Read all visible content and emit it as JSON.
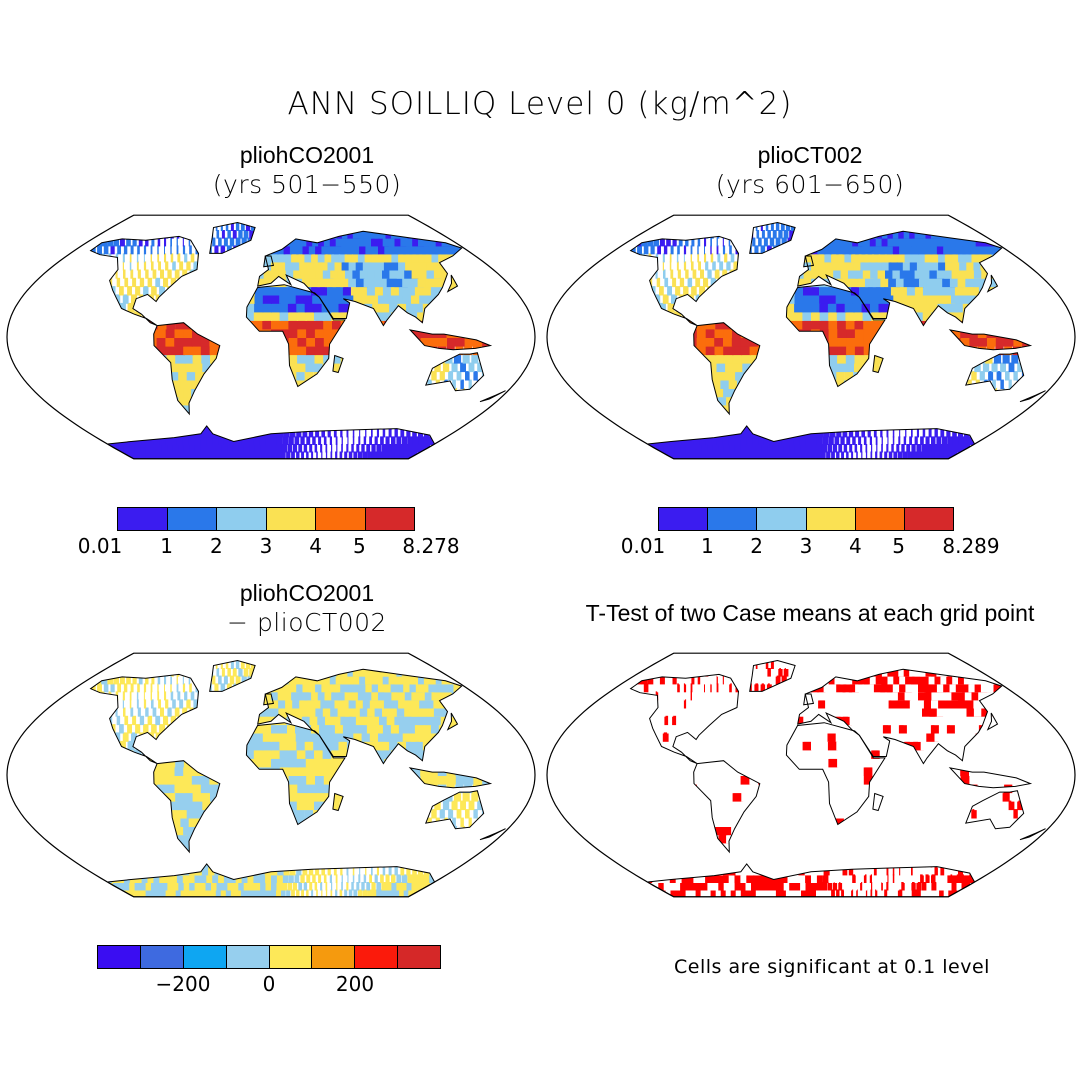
{
  "title": "ANN SOILLIQ Level 0 (kg/m^2)",
  "panels": [
    {
      "case": "pliohCO2001",
      "subtitle": "(yrs 501−550)",
      "map_style": "field"
    },
    {
      "case": "plioCT002",
      "subtitle": "(yrs 601−650)",
      "map_style": "field"
    },
    {
      "case": "pliohCO2001",
      "subtitle": "− plioCT002",
      "map_style": "difference"
    },
    {
      "case": "T-Test of two Case means at each grid point",
      "subtitle": "",
      "map_style": "significance"
    }
  ],
  "colorbars": [
    {
      "colors": [
        "#3b1cf0",
        "#2a78ea",
        "#8fcdee",
        "#fae153",
        "#fb6d0c",
        "#d6292a"
      ],
      "labels": [
        "0.01",
        "1",
        "2",
        "3",
        "4",
        "5",
        "8.278"
      ]
    },
    {
      "colors": [
        "#3b1cf0",
        "#2a78ea",
        "#8fcdee",
        "#fae153",
        "#fb6d0c",
        "#d6292a"
      ],
      "labels": [
        "0.01",
        "1",
        "2",
        "3",
        "4",
        "5",
        "8.289"
      ]
    },
    {
      "colors": [
        "#3a0df2",
        "#3e6ae0",
        "#0ea6f2",
        "#96cfee",
        "#fde858",
        "#f59a0e",
        "#fb1a0b",
        "#d52828"
      ],
      "labels": [
        "−200",
        "0",
        "200"
      ]
    }
  ],
  "footnote": "Cells are significant at 0.1 level"
}
